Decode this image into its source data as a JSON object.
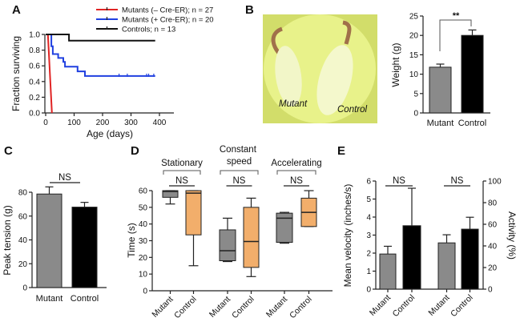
{
  "panels": {
    "A": "A",
    "B": "B",
    "C": "C",
    "D": "D",
    "E": "E"
  },
  "photo": {
    "labels": [
      "Mutant",
      "Control"
    ],
    "background_color": "#e4ef7a"
  },
  "colors": {
    "gray_bar": "#8a8a8a",
    "black_bar": "#000000",
    "orange_box": "#f2ae6b",
    "red": "#e02424",
    "blue": "#2040e0",
    "black": "#111111"
  },
  "chart_data": [
    {
      "panel": "A",
      "type": "line",
      "xlabel": "Age (days)",
      "ylabel": "Fraction surviving",
      "xlim": [
        0,
        450
      ],
      "ylim": [
        0,
        1.0
      ],
      "xticks": [
        "0",
        "100",
        "200",
        "300",
        "400"
      ],
      "yticks": [
        "0.0",
        "0.2",
        "0.4",
        "0.6",
        "0.8",
        "1.0"
      ],
      "legend_position": "top-right",
      "series": [
        {
          "name": "Mutants (– Cre-ER); n = 27",
          "color": "#e02424",
          "points": [
            [
              0,
              1
            ],
            [
              8,
              1
            ],
            [
              22,
              0
            ]
          ],
          "censored": []
        },
        {
          "name": "Mutants (+ Cre-ER); n = 20",
          "color": "#2040e0",
          "points": [
            [
              0,
              1
            ],
            [
              20,
              1
            ],
            [
              20,
              0.85
            ],
            [
              25,
              0.85
            ],
            [
              25,
              0.75
            ],
            [
              44,
              0.75
            ],
            [
              44,
              0.7
            ],
            [
              62,
              0.7
            ],
            [
              62,
              0.65
            ],
            [
              68,
              0.65
            ],
            [
              68,
              0.59
            ],
            [
              112,
              0.59
            ],
            [
              112,
              0.53
            ],
            [
              138,
              0.53
            ],
            [
              138,
              0.47
            ],
            [
              385,
              0.47
            ]
          ],
          "censored": [
            258,
            287,
            355,
            362,
            380
          ]
        },
        {
          "name": "Controls; n = 13",
          "color": "#111111",
          "points": [
            [
              0,
              1
            ],
            [
              82,
              1
            ],
            [
              82,
              0.92
            ],
            [
              385,
              0.92
            ]
          ],
          "censored": []
        }
      ]
    },
    {
      "panel": "B",
      "type": "bar",
      "ylabel": "Weight (g)",
      "ylim": [
        0,
        25
      ],
      "yticks": [
        "0",
        "5",
        "10",
        "15",
        "20",
        "25"
      ],
      "categories": [
        "Mutant",
        "Control"
      ],
      "values": [
        11.8,
        20.0
      ],
      "errors": [
        0.8,
        1.4
      ],
      "significance": "**"
    },
    {
      "panel": "C",
      "type": "bar",
      "ylabel": "Peak tension (g)",
      "ylim": [
        0,
        85
      ],
      "yticks": [
        "0",
        "20",
        "40",
        "60",
        "80"
      ],
      "categories": [
        "Mutant",
        "Control"
      ],
      "values": [
        78.5,
        67.5
      ],
      "errors": [
        6,
        4
      ],
      "significance": "NS"
    },
    {
      "panel": "D",
      "type": "box",
      "ylabel": "Time (s)",
      "ylim": [
        0,
        65
      ],
      "yticks": [
        "0",
        "10",
        "20",
        "30",
        "40",
        "50",
        "60"
      ],
      "groups": [
        {
          "name": "Stationary",
          "significance": "NS",
          "boxes": [
            {
              "category": "Mutant",
              "min": 52,
              "q1": 56,
              "median": 59.5,
              "q3": 60,
              "max": 60
            },
            {
              "category": "Control",
              "min": 15,
              "q1": 33.5,
              "median": 58.5,
              "q3": 60,
              "max": 60
            }
          ]
        },
        {
          "name": "Constant speed",
          "significance": "NS",
          "boxes": [
            {
              "category": "Mutant",
              "min": 17.5,
              "q1": 18,
              "median": 24,
              "q3": 36.5,
              "max": 43.5
            },
            {
              "category": "Control",
              "min": 8.5,
              "q1": 14,
              "median": 29.5,
              "q3": 50,
              "max": 55.5
            }
          ]
        },
        {
          "name": "Accelerating",
          "significance": "NS",
          "boxes": [
            {
              "category": "Mutant",
              "min": 28.5,
              "q1": 29,
              "median": 43.5,
              "q3": 46.5,
              "max": 47
            },
            {
              "category": "Control",
              "min": 38.5,
              "q1": 38.5,
              "median": 47,
              "q3": 55.5,
              "max": 60
            }
          ]
        }
      ]
    },
    {
      "panel": "E",
      "type": "bar",
      "ylabel": "Mean velocity (inches/s)",
      "ylim": [
        0,
        6
      ],
      "yticks": [
        "0",
        "1",
        "2",
        "3",
        "4",
        "5",
        "6"
      ],
      "y2label": "Activity (%)",
      "y2lim": [
        0,
        100
      ],
      "y2ticks": [
        "0",
        "20",
        "40",
        "60",
        "80",
        "100"
      ],
      "groups": [
        {
          "axis": "left",
          "significance": "NS",
          "categories": [
            "Mutant",
            "Control"
          ],
          "values": [
            1.95,
            3.52
          ],
          "errors": [
            0.43,
            2.08
          ]
        },
        {
          "axis": "right",
          "significance": "NS",
          "categories": [
            "Mutant",
            "Control"
          ],
          "values": [
            42.8,
            55.5
          ],
          "errors": [
            7.5,
            11
          ]
        }
      ]
    }
  ]
}
